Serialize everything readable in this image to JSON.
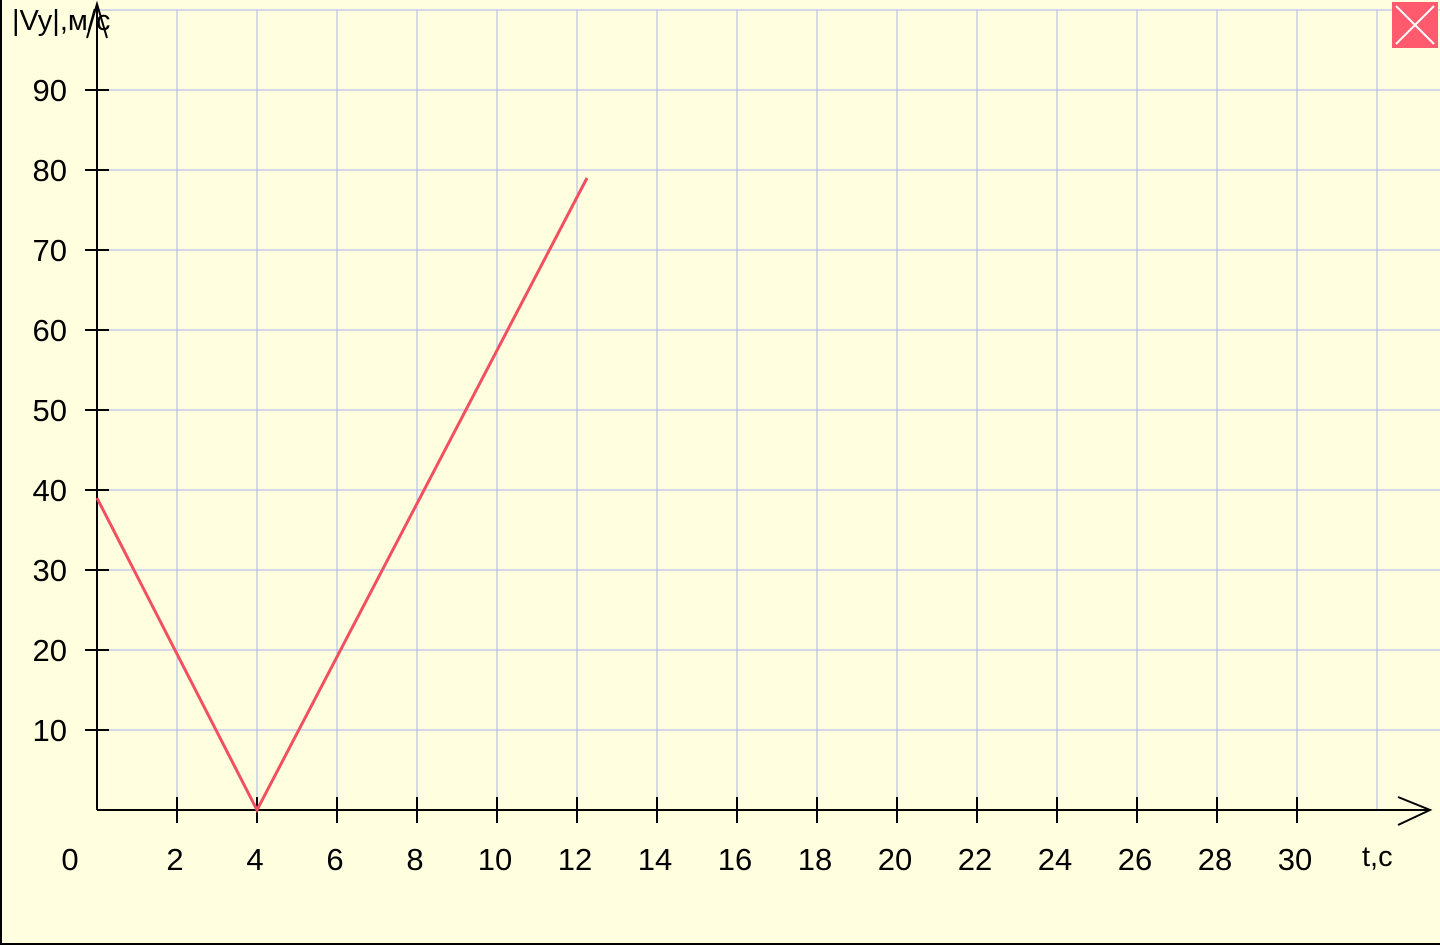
{
  "chart_data": {
    "type": "line",
    "title": "",
    "xlabel": "t,c",
    "ylabel": "|Vy|,м/с",
    "xlim": [
      0,
      33
    ],
    "ylim": [
      0,
      90
    ],
    "x_ticks": [
      0,
      2,
      4,
      6,
      8,
      10,
      12,
      14,
      16,
      18,
      20,
      22,
      24,
      26,
      28,
      30
    ],
    "x_tick_labels": [
      "0",
      "2",
      "4",
      "6",
      "8",
      "10",
      "12",
      "14",
      "16",
      "18",
      "20",
      "22",
      "24",
      "26",
      "28",
      "30"
    ],
    "y_ticks": [
      10,
      20,
      30,
      40,
      50,
      60,
      70,
      80,
      90
    ],
    "y_tick_labels": [
      "10",
      "20",
      "30",
      "40",
      "50",
      "60",
      "70",
      "80",
      "90"
    ],
    "grid": true,
    "series": [
      {
        "x": [
          0,
          4,
          12.25
        ],
        "y": [
          39,
          0,
          79
        ]
      }
    ],
    "colors": {
      "background": "#ffffe0",
      "grid": "#a9b4ea",
      "axis": "#000000",
      "line": "#f0505f"
    }
  },
  "toolbar": {
    "close_icon": "close-icon",
    "close_color": "#ff5a6e"
  }
}
